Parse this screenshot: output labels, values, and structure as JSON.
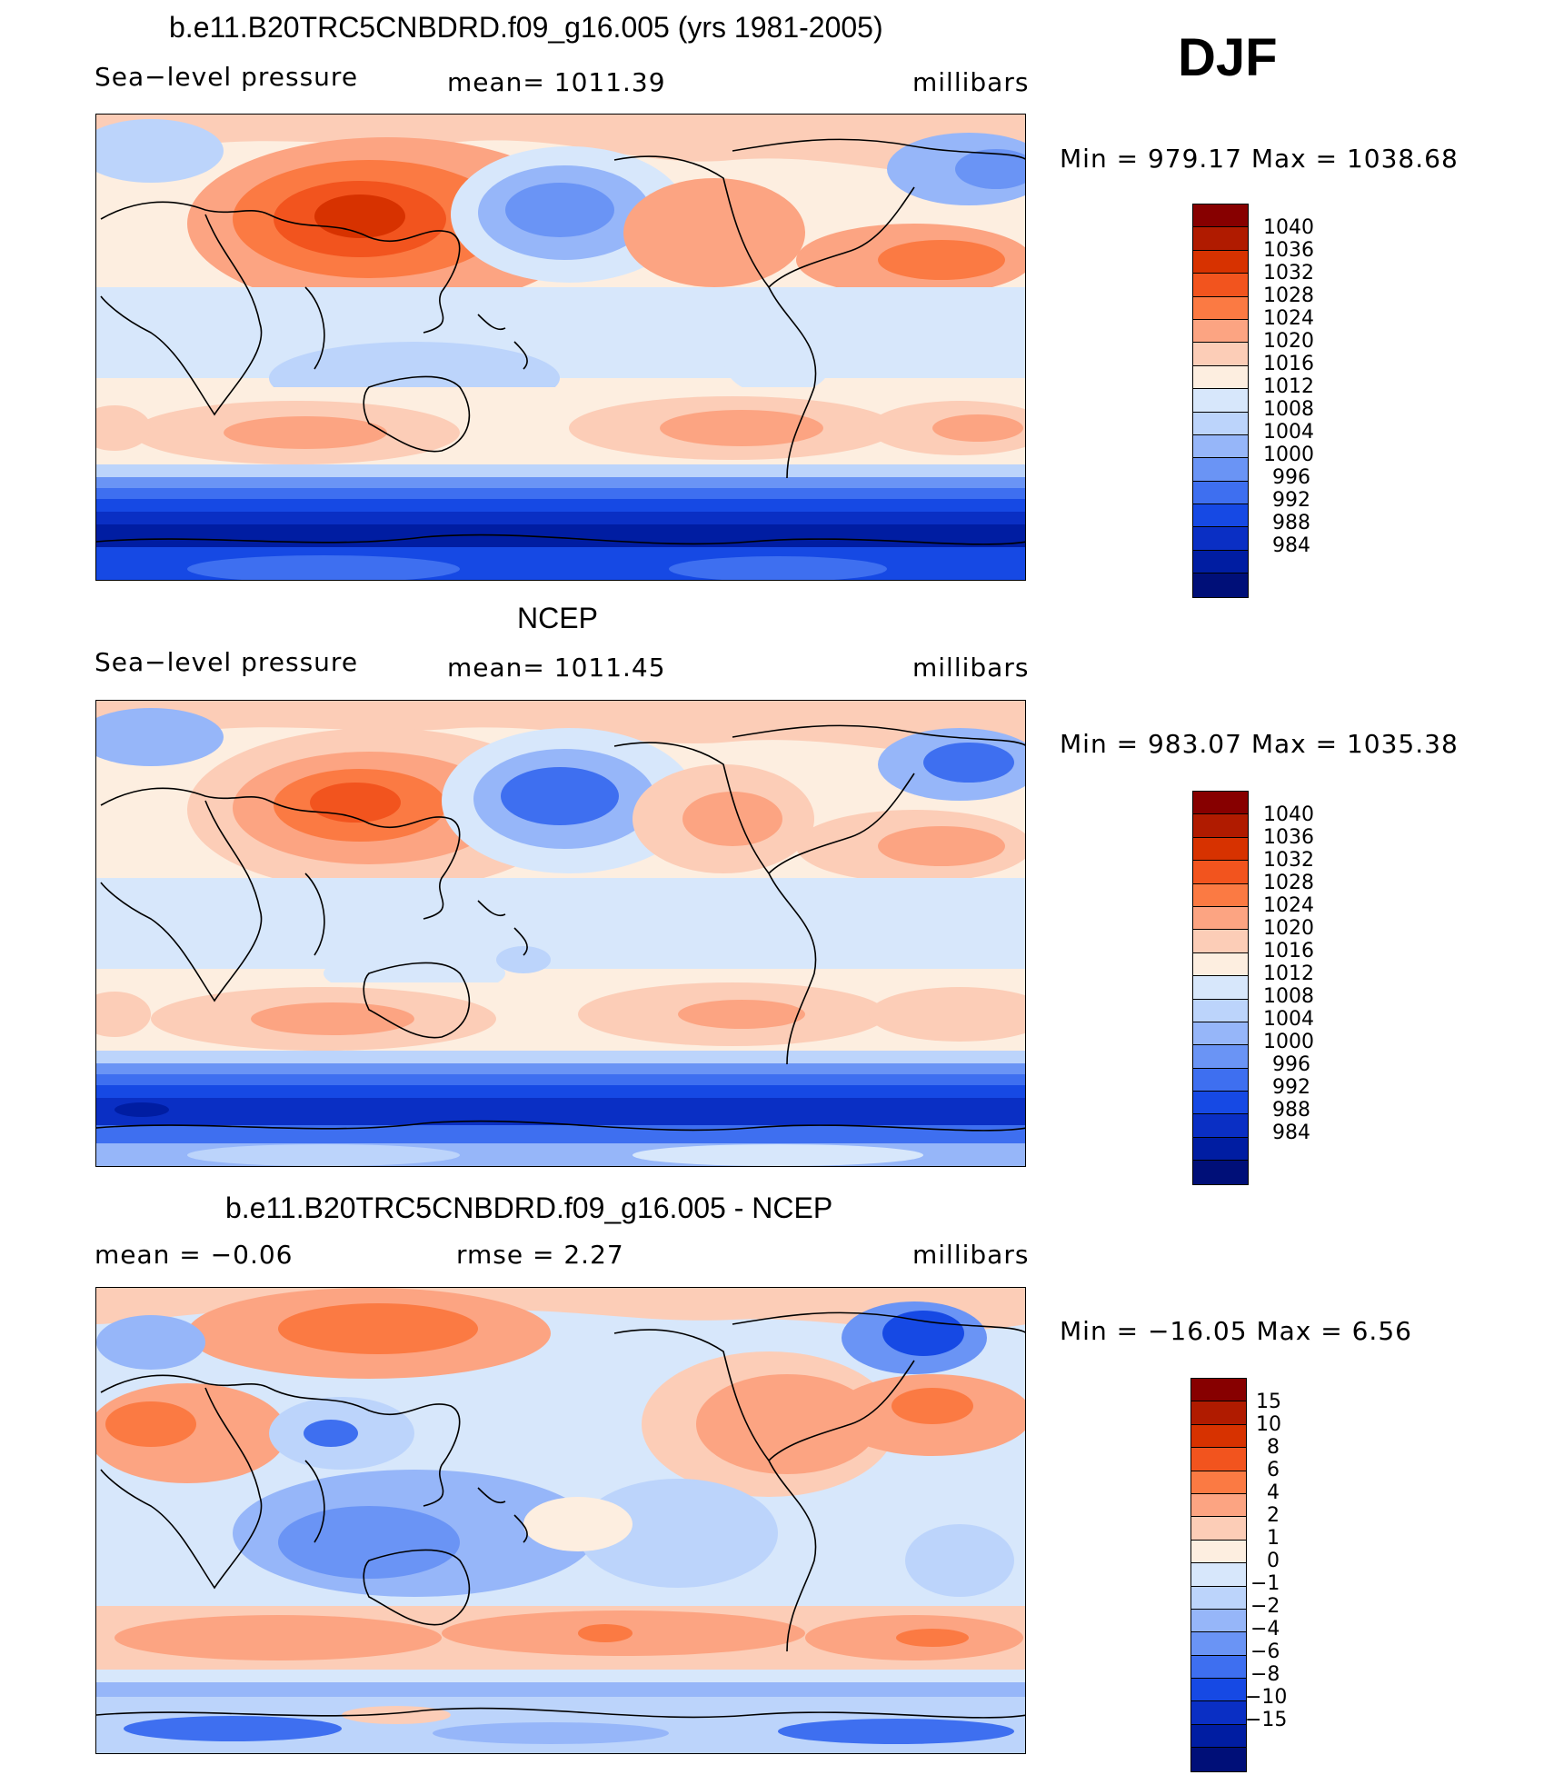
{
  "season_label": "DJF",
  "colors": {
    "pressure_levels": [
      "#870000",
      "#b01b00",
      "#d73200",
      "#f2541e",
      "#fb7a43",
      "#fca482",
      "#fccdb7",
      "#fdeee0",
      "#d7e7fb",
      "#bcd4fb",
      "#96b6f9",
      "#6a94f5",
      "#3e6ff0",
      "#1649e4",
      "#0a2fc4",
      "#001da2",
      "#000f78"
    ],
    "difference_levels": [
      "#870000",
      "#b01b00",
      "#d73200",
      "#f2541e",
      "#fb7a43",
      "#fca482",
      "#fccdb7",
      "#fdeee0",
      "#d7e7fb",
      "#bcd4fb",
      "#96b6f9",
      "#6a94f5",
      "#3e6ff0",
      "#1649e4",
      "#0a2fc4",
      "#001da2",
      "#000f78"
    ]
  },
  "panels": [
    {
      "title": "b.e11.B20TRC5CNBDRD.f09_g16.005 (yrs 1981-2005)",
      "left_label": "Sea−level pressure",
      "center_label": "mean=  1011.39",
      "right_label": "millibars",
      "stats": "Min  =  979.17  Max  =  1038.68",
      "colorbar_labels": [
        "1040",
        "1036",
        "1032",
        "1028",
        "1024",
        "1020",
        "1016",
        "1012",
        "1008",
        "1004",
        "1000",
        "996",
        "992",
        "988",
        "984"
      ]
    },
    {
      "title": "NCEP",
      "left_label": "Sea−level pressure",
      "center_label": "mean=  1011.45",
      "right_label": "millibars",
      "stats": "Min  =  983.07  Max  =  1035.38",
      "colorbar_labels": [
        "1040",
        "1036",
        "1032",
        "1028",
        "1024",
        "1020",
        "1016",
        "1012",
        "1008",
        "1004",
        "1000",
        "996",
        "992",
        "988",
        "984"
      ]
    },
    {
      "title": "b.e11.B20TRC5CNBDRD.f09_g16.005 - NCEP",
      "left_label": "mean  =    −0.06",
      "center_label": "rmse  =     2.27",
      "right_label": "millibars",
      "stats": "Min  =  −16.05  Max  =      6.56",
      "colorbar_labels": [
        "15",
        "10",
        "8",
        "6",
        "4",
        "2",
        "1",
        "0",
        "−1",
        "−2",
        "−4",
        "−6",
        "−8",
        "−10",
        "−15"
      ]
    }
  ]
}
